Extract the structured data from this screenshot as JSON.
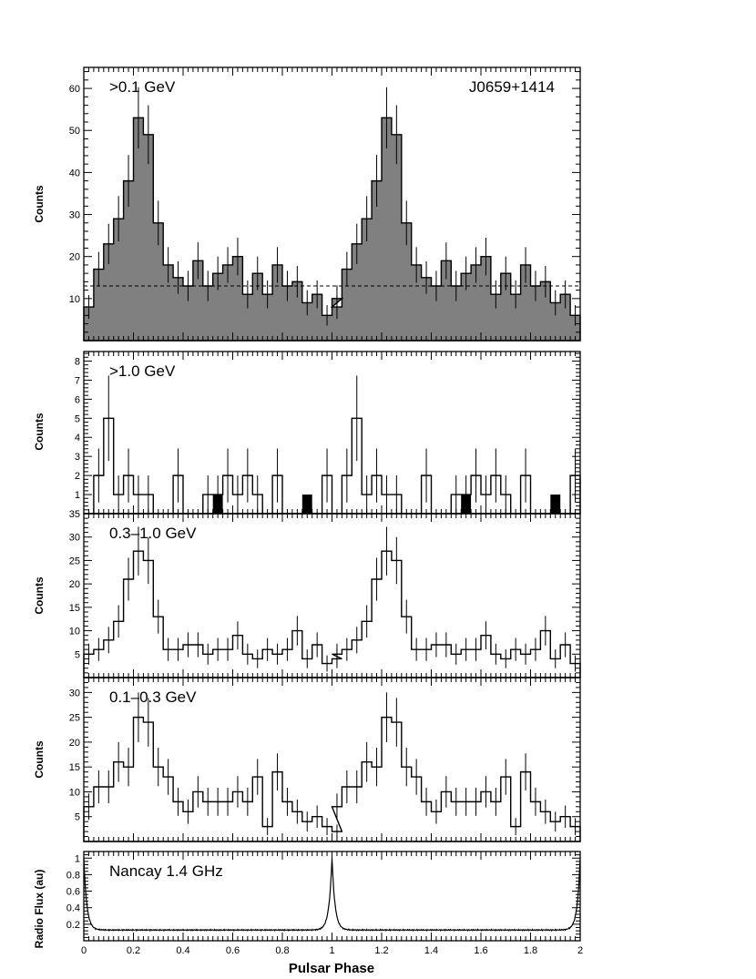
{
  "figure": {
    "source_label": "J0659+1414",
    "xlabel": "Pulsar Phase",
    "x_ticks": [
      "0",
      "0.2",
      "0.4",
      "0.6",
      "0.8",
      "1",
      "1.2",
      "1.4",
      "1.6",
      "1.8",
      "2"
    ]
  },
  "chart_data": [
    {
      "type": "bar",
      "title": ">0.1 GeV",
      "ylabel": "Counts",
      "xlim": [
        0,
        2
      ],
      "ylim": [
        0,
        65
      ],
      "y_ticks": [
        10,
        20,
        30,
        40,
        50,
        60
      ],
      "fill": "#808080",
      "bin_width": 0.04,
      "background_level": 13,
      "values": [
        8,
        17,
        23,
        29,
        38,
        53,
        49,
        28,
        18,
        15,
        13,
        19,
        13,
        16,
        18,
        20,
        11,
        16,
        11,
        18,
        13,
        14,
        9,
        11,
        6,
        10
      ],
      "x": [
        0,
        0.04,
        0.08,
        0.12,
        0.16,
        0.2,
        0.24,
        0.28,
        0.32,
        0.36,
        0.4,
        0.44,
        0.48,
        0.52,
        0.56,
        0.6,
        0.64,
        0.68,
        0.72,
        0.76,
        0.8,
        0.84,
        0.88,
        0.92,
        0.96,
        1.0
      ]
    },
    {
      "type": "bar",
      "title": ">1.0 GeV",
      "ylabel": "Counts",
      "xlim": [
        0,
        2
      ],
      "ylim": [
        0,
        8.5
      ],
      "y_ticks": [
        1,
        2,
        3,
        4,
        5,
        6,
        7,
        8
      ],
      "bin_width": 0.04,
      "values": [
        0,
        2,
        5,
        1,
        2,
        1,
        1,
        0,
        0,
        2,
        0,
        0,
        1,
        1,
        2,
        1,
        2,
        1,
        0,
        2,
        0,
        0,
        0,
        0,
        2,
        0
      ],
      "x": [
        0,
        0.04,
        0.08,
        0.12,
        0.16,
        0.2,
        0.24,
        0.28,
        0.32,
        0.36,
        0.4,
        0.44,
        0.48,
        0.52,
        0.56,
        0.6,
        0.64,
        0.68,
        0.72,
        0.76,
        0.8,
        0.84,
        0.88,
        0.92,
        0.96,
        1.0
      ],
      "filled_bins_x": [
        0.54,
        0.9,
        1.54,
        1.9
      ],
      "filled_bins_value": 1
    },
    {
      "type": "bar",
      "title": "0.3–1.0 GeV",
      "ylabel": "Counts",
      "xlim": [
        0,
        2
      ],
      "ylim": [
        0,
        35
      ],
      "y_ticks": [
        5,
        10,
        15,
        20,
        25,
        30,
        35
      ],
      "bin_width": 0.04,
      "values": [
        5,
        6,
        8,
        12,
        21,
        27,
        25,
        13,
        6,
        6,
        7,
        7,
        5,
        6,
        6,
        9,
        5,
        4,
        6,
        5,
        6,
        10,
        4,
        7,
        3,
        4
      ],
      "x": [
        0,
        0.04,
        0.08,
        0.12,
        0.16,
        0.2,
        0.24,
        0.28,
        0.32,
        0.36,
        0.4,
        0.44,
        0.48,
        0.52,
        0.56,
        0.6,
        0.64,
        0.68,
        0.72,
        0.76,
        0.8,
        0.84,
        0.88,
        0.92,
        0.96,
        1.0
      ]
    },
    {
      "type": "bar",
      "title": "0.1–0.3 GeV",
      "ylabel": "Counts",
      "xlim": [
        0,
        2
      ],
      "ylim": [
        0,
        33
      ],
      "y_ticks": [
        5,
        10,
        15,
        20,
        25,
        30
      ],
      "bin_width": 0.04,
      "values": [
        7,
        11,
        11,
        16,
        15,
        25,
        24,
        15,
        13,
        8,
        6,
        10,
        8,
        8,
        8,
        10,
        8,
        13,
        3,
        14,
        8,
        6,
        4,
        5,
        3,
        2
      ],
      "x": [
        0,
        0.04,
        0.08,
        0.12,
        0.16,
        0.2,
        0.24,
        0.28,
        0.32,
        0.36,
        0.4,
        0.44,
        0.48,
        0.52,
        0.56,
        0.6,
        0.64,
        0.68,
        0.72,
        0.76,
        0.8,
        0.84,
        0.88,
        0.92,
        0.96,
        1.0
      ]
    },
    {
      "type": "line",
      "title": "Nancay 1.4 GHz",
      "ylabel": "Radio Flux (au)",
      "xlim": [
        0,
        2
      ],
      "ylim": [
        0,
        1.08
      ],
      "y_ticks": [
        0.2,
        0.4,
        0.6,
        0.8,
        1
      ],
      "baseline": 0.13,
      "peak_phase": 0,
      "peak_value": 1,
      "peak_width": 0.012
    }
  ]
}
